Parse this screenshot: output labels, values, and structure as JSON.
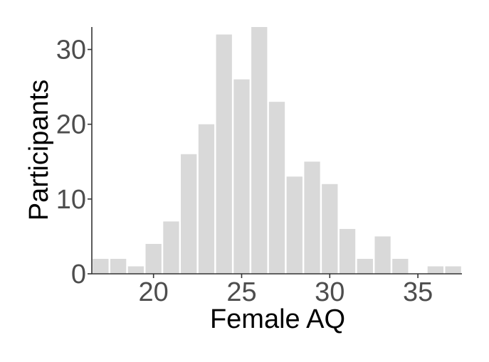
{
  "chart_data": {
    "type": "bar",
    "xlabel": "Female AQ",
    "ylabel": "Participants",
    "x": [
      17,
      18,
      19,
      20,
      21,
      22,
      23,
      24,
      25,
      26,
      27,
      28,
      29,
      30,
      31,
      32,
      33,
      34,
      35,
      36,
      37
    ],
    "values": [
      2,
      2,
      1,
      4,
      7,
      16,
      20,
      32,
      26,
      33,
      23,
      13,
      15,
      12,
      6,
      2,
      5,
      2,
      0,
      1,
      1
    ],
    "xlim": [
      16.5,
      37.5
    ],
    "ylim": [
      0,
      33
    ],
    "x_ticks": [
      20,
      25,
      30,
      35
    ],
    "y_ticks": [
      0,
      10,
      20,
      30
    ],
    "grid": false,
    "bar_color": "#d9d9d9",
    "axis_color": "#333333"
  }
}
